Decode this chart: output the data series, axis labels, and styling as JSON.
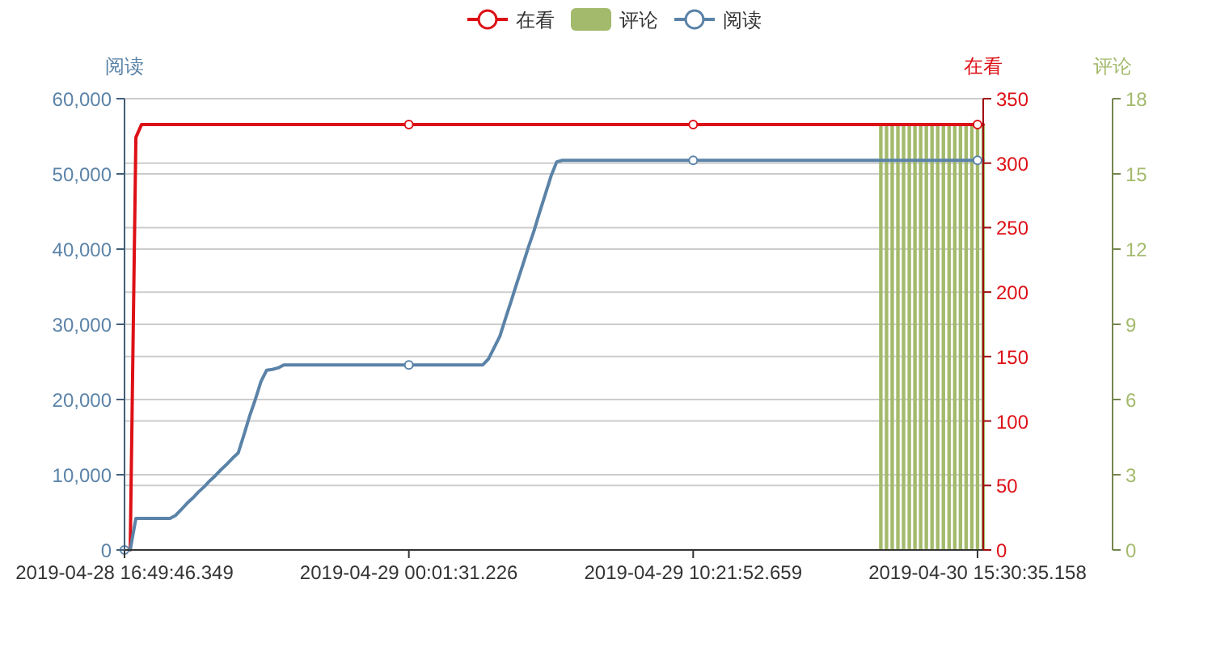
{
  "chart_data": {
    "type": "line",
    "legend": "top",
    "grid": "y",
    "ylabel": "阅读",
    "y2label": "在看",
    "y3label": "评论",
    "ylim": [
      0,
      60000
    ],
    "yticks": [
      0,
      {
        "value": 10000,
        "label": "10,000"
      },
      {
        "value": 20000,
        "label": "20,000"
      },
      {
        "value": 30000,
        "label": "30,000"
      },
      {
        "value": 40000,
        "label": "40,000"
      },
      {
        "value": 50000,
        "label": "50,000"
      },
      {
        "value": 60000,
        "label": "60,000"
      }
    ],
    "y2lim": [
      0,
      350
    ],
    "y2ticks": [
      0,
      50,
      100,
      150,
      200,
      250,
      300,
      350
    ],
    "y3lim": [
      0,
      18
    ],
    "y3ticks": [
      0,
      3,
      6,
      9,
      12,
      15,
      18
    ],
    "categories": [
      "2019-04-28 16:49:46.349",
      null,
      null,
      null,
      null,
      null,
      null,
      null,
      null,
      null,
      null,
      null,
      null,
      null,
      null,
      null,
      null,
      null,
      null,
      null,
      null,
      null,
      null,
      null,
      null,
      null,
      null,
      null,
      null,
      null,
      null,
      null,
      null,
      null,
      null,
      null,
      null,
      null,
      null,
      null,
      null,
      null,
      null,
      null,
      null,
      null,
      null,
      null,
      null,
      null,
      "2019-04-29 00:01:31.226",
      null,
      null,
      null,
      null,
      null,
      null,
      null,
      null,
      null,
      null,
      null,
      null,
      null,
      null,
      null,
      null,
      null,
      null,
      null,
      null,
      null,
      null,
      null,
      null,
      null,
      null,
      null,
      null,
      null,
      null,
      null,
      null,
      null,
      null,
      null,
      null,
      null,
      null,
      null,
      null,
      null,
      null,
      null,
      null,
      null,
      null,
      null,
      null,
      null,
      "2019-04-29 10:21:52.659",
      null,
      null,
      null,
      null,
      null,
      null,
      null,
      null,
      null,
      null,
      null,
      null,
      null,
      null,
      null,
      null,
      null,
      null,
      null,
      null,
      null,
      null,
      null,
      null,
      null,
      null,
      null,
      null,
      null,
      null,
      null,
      null,
      null,
      null,
      null,
      null,
      null,
      null,
      null,
      null,
      null,
      null,
      null,
      null,
      null,
      null,
      null,
      null,
      null,
      "2019-04-30 15:30:35.158",
      null
    ],
    "series": [
      {
        "name": "在看",
        "axis": "y2",
        "color": "#dd1016",
        "values": [
          0,
          0,
          320,
          330,
          330,
          330,
          330,
          330,
          330,
          330,
          330,
          330,
          330,
          330,
          330,
          330,
          330,
          330,
          330,
          330,
          330,
          330,
          330,
          330,
          330,
          330,
          330,
          330,
          330,
          330,
          330,
          330,
          330,
          330,
          330,
          330,
          330,
          330,
          330,
          330,
          330,
          330,
          330,
          330,
          330,
          330,
          330,
          330,
          330,
          330,
          330,
          330,
          330,
          330,
          330,
          330,
          330,
          330,
          330,
          330,
          330,
          330,
          330,
          330,
          330,
          330,
          330,
          330,
          330,
          330,
          330,
          330,
          330,
          330,
          330,
          330,
          330,
          330,
          330,
          330,
          330,
          330,
          330,
          330,
          330,
          330,
          330,
          330,
          330,
          330,
          330,
          330,
          330,
          330,
          330,
          330,
          330,
          330,
          330,
          330,
          330,
          330,
          330,
          330,
          330,
          330,
          330,
          330,
          330,
          330,
          330,
          330,
          330,
          330,
          330,
          330,
          330,
          330,
          330,
          330,
          330,
          330,
          330,
          330,
          330,
          330,
          330,
          330,
          330,
          330,
          330,
          330,
          330,
          330,
          330,
          330,
          330,
          330,
          330,
          330,
          330,
          330,
          330,
          330,
          330,
          330,
          330,
          330,
          330,
          330,
          330,
          330
        ]
      },
      {
        "name": "评论",
        "type": "bar",
        "axis": "y3",
        "color": "#a3ba6c",
        "values": [
          null,
          null,
          null,
          null,
          null,
          null,
          null,
          null,
          null,
          null,
          null,
          null,
          null,
          null,
          null,
          null,
          null,
          null,
          null,
          null,
          null,
          null,
          null,
          null,
          null,
          null,
          null,
          null,
          null,
          null,
          null,
          null,
          null,
          null,
          null,
          null,
          null,
          null,
          null,
          null,
          null,
          null,
          null,
          null,
          null,
          null,
          null,
          null,
          null,
          null,
          null,
          null,
          null,
          null,
          null,
          null,
          null,
          null,
          null,
          null,
          null,
          null,
          null,
          null,
          null,
          null,
          null,
          null,
          null,
          null,
          null,
          null,
          null,
          null,
          null,
          null,
          null,
          null,
          null,
          null,
          null,
          null,
          null,
          null,
          null,
          null,
          null,
          null,
          null,
          null,
          null,
          null,
          null,
          null,
          null,
          null,
          null,
          null,
          null,
          null,
          null,
          null,
          null,
          null,
          null,
          null,
          null,
          null,
          null,
          null,
          null,
          null,
          null,
          null,
          null,
          null,
          null,
          null,
          null,
          null,
          null,
          null,
          null,
          null,
          null,
          null,
          null,
          null,
          null,
          null,
          null,
          null,
          null,
          17,
          17,
          17,
          17,
          17,
          17,
          17,
          17,
          17,
          17,
          17,
          17,
          17,
          17,
          17,
          17,
          17,
          17,
          17
        ]
      },
      {
        "name": "阅读",
        "color": "#5b83a8",
        "values": [
          0,
          0,
          4200,
          4200,
          4200,
          4200,
          4200,
          4200,
          4200,
          4600,
          5400,
          6200,
          6900,
          7700,
          8400,
          9200,
          9900,
          10700,
          11400,
          12200,
          12900,
          15300,
          17800,
          20000,
          22400,
          23900,
          24000,
          24200,
          24600,
          24600,
          24600,
          24600,
          24600,
          24600,
          24600,
          24600,
          24600,
          24600,
          24600,
          24600,
          24600,
          24600,
          24600,
          24600,
          24600,
          24600,
          24600,
          24600,
          24600,
          24600,
          24600,
          24600,
          24600,
          24600,
          24600,
          24600,
          24600,
          24600,
          24600,
          24600,
          24600,
          24600,
          24600,
          24600,
          25400,
          26900,
          28400,
          30800,
          33100,
          35500,
          37800,
          40200,
          42400,
          44900,
          47300,
          49700,
          51600,
          51800,
          51800,
          51800,
          51800,
          51800,
          51800,
          51800,
          51800,
          51800,
          51800,
          51800,
          51800,
          51800,
          51800,
          51800,
          51800,
          51800,
          51800,
          51800,
          51800,
          51800,
          51800,
          51800,
          51800,
          51800,
          51800,
          51800,
          51800,
          51800,
          51800,
          51800,
          51800,
          51800,
          51800,
          51800,
          51800,
          51800,
          51800,
          51800,
          51800,
          51800,
          51800,
          51800,
          51800,
          51800,
          51800,
          51800,
          51800,
          51800,
          51800,
          51800,
          51800,
          51800,
          51800,
          51800,
          51800,
          51800,
          51800,
          51800,
          51800,
          51800,
          51800,
          51800,
          51800,
          51800,
          51800,
          51800,
          51800,
          51800,
          51800,
          51800,
          51800,
          51800,
          51800,
          51800
        ]
      },
      {
        "type": "scatter",
        "axis": "y2",
        "marker": "circle",
        "color": "#dd1016",
        "values": [
          null,
          null,
          null,
          null,
          null,
          null,
          null,
          null,
          null,
          null,
          null,
          null,
          null,
          null,
          null,
          null,
          null,
          null,
          null,
          null,
          null,
          null,
          null,
          null,
          null,
          null,
          null,
          null,
          null,
          null,
          null,
          null,
          null,
          null,
          null,
          null,
          null,
          null,
          null,
          null,
          null,
          null,
          null,
          null,
          null,
          null,
          null,
          null,
          null,
          null,
          330,
          null,
          null,
          null,
          null,
          null,
          null,
          null,
          null,
          null,
          null,
          null,
          null,
          null,
          null,
          null,
          null,
          null,
          null,
          null,
          null,
          null,
          null,
          null,
          null,
          null,
          null,
          null,
          null,
          null,
          null,
          null,
          null,
          null,
          null,
          null,
          null,
          null,
          null,
          null,
          null,
          null,
          null,
          null,
          null,
          null,
          null,
          null,
          null,
          null,
          330,
          null,
          null,
          null,
          null,
          null,
          null,
          null,
          null,
          null,
          null,
          null,
          null,
          null,
          null,
          null,
          null,
          null,
          null,
          null,
          null,
          null,
          null,
          null,
          null,
          null,
          null,
          null,
          null,
          null,
          null,
          null,
          null,
          null,
          null,
          null,
          null,
          null,
          null,
          null,
          null,
          null,
          null,
          null,
          null,
          null,
          null,
          null,
          null,
          null,
          330,
          null
        ]
      },
      {
        "type": "scatter",
        "marker": "circle",
        "color": "#5b83a8",
        "values": [
          0,
          null,
          null,
          null,
          null,
          null,
          null,
          null,
          null,
          null,
          null,
          null,
          null,
          null,
          null,
          null,
          null,
          null,
          null,
          null,
          null,
          null,
          null,
          null,
          null,
          null,
          null,
          null,
          null,
          null,
          null,
          null,
          null,
          null,
          null,
          null,
          null,
          null,
          null,
          null,
          null,
          null,
          null,
          null,
          null,
          null,
          null,
          null,
          null,
          null,
          24600,
          null,
          null,
          null,
          null,
          null,
          null,
          null,
          null,
          null,
          null,
          null,
          null,
          null,
          null,
          null,
          null,
          null,
          null,
          null,
          null,
          null,
          null,
          null,
          null,
          null,
          null,
          null,
          null,
          null,
          null,
          null,
          null,
          null,
          null,
          null,
          null,
          null,
          null,
          null,
          null,
          null,
          null,
          null,
          null,
          null,
          null,
          null,
          null,
          null,
          51800,
          null,
          null,
          null,
          null,
          null,
          null,
          null,
          null,
          null,
          null,
          null,
          null,
          null,
          null,
          null,
          null,
          null,
          null,
          null,
          null,
          null,
          null,
          null,
          null,
          null,
          null,
          null,
          null,
          null,
          null,
          null,
          null,
          null,
          null,
          null,
          null,
          null,
          null,
          null,
          null,
          null,
          null,
          null,
          null,
          null,
          null,
          null,
          null,
          null,
          51800,
          null
        ]
      }
    ]
  }
}
